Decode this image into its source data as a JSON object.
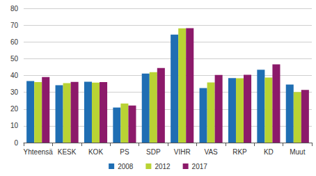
{
  "chart_data": {
    "type": "bar",
    "categories": [
      "Yhteensä",
      "KESK",
      "KOK",
      "PS",
      "SDP",
      "VIHR",
      "VAS",
      "RKP",
      "KD",
      "Muut"
    ],
    "series": [
      {
        "name": "2008",
        "color": "#1f6eb3",
        "values": [
          36.7,
          34.2,
          36.3,
          20.9,
          41.1,
          64.4,
          32.5,
          38.4,
          43.4,
          34.6
        ]
      },
      {
        "name": "2012",
        "color": "#b9d334",
        "values": [
          36.1,
          35.4,
          35.8,
          23.3,
          42.0,
          68.1,
          35.9,
          38.3,
          38.8,
          30.1
        ]
      },
      {
        "name": "2017",
        "color": "#8c1a6a",
        "values": [
          39.1,
          36.2,
          36.1,
          22.1,
          44.5,
          68.2,
          40.3,
          40.4,
          46.6,
          31.4
        ]
      }
    ],
    "ylim": [
      0,
      80
    ],
    "yticks": [
      0,
      10,
      20,
      30,
      40,
      50,
      60,
      70,
      80
    ],
    "grid": true,
    "legend": "bottom"
  }
}
